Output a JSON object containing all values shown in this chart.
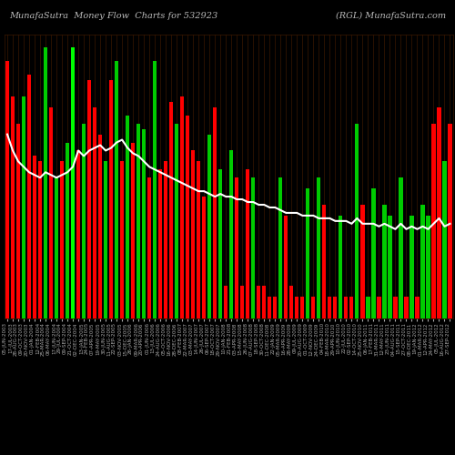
{
  "title_left": "MunafaSutra  Money Flow  Charts for 532923",
  "title_right": "(RGL) MunafaSutra.com",
  "background_color": "#000000",
  "bar_colors": [
    "red",
    "red",
    "red",
    "green",
    "red",
    "red",
    "red",
    "green",
    "red",
    "green",
    "red",
    "green",
    "green",
    "red",
    "green",
    "red",
    "red",
    "red",
    "green",
    "red",
    "green",
    "red",
    "green",
    "red",
    "green",
    "green",
    "red",
    "green",
    "red",
    "red",
    "red",
    "green",
    "red",
    "red",
    "red",
    "red",
    "red",
    "green",
    "red",
    "green",
    "red",
    "green",
    "red",
    "red",
    "red",
    "green",
    "red",
    "red",
    "red",
    "red",
    "green",
    "red",
    "red",
    "red",
    "red",
    "green",
    "red",
    "green",
    "red",
    "red",
    "red",
    "green",
    "red",
    "red",
    "green",
    "red",
    "green",
    "green",
    "red",
    "green",
    "green",
    "red",
    "green",
    "red",
    "green",
    "red",
    "green",
    "green",
    "red",
    "red",
    "green",
    "red"
  ],
  "bar_heights": [
    95,
    82,
    72,
    82,
    90,
    60,
    58,
    100,
    78,
    52,
    58,
    65,
    100,
    62,
    72,
    88,
    78,
    68,
    58,
    88,
    95,
    58,
    75,
    65,
    72,
    70,
    52,
    95,
    55,
    58,
    80,
    72,
    82,
    75,
    62,
    58,
    45,
    68,
    78,
    55,
    12,
    62,
    52,
    12,
    55,
    52,
    12,
    12,
    8,
    8,
    52,
    38,
    12,
    8,
    8,
    48,
    8,
    52,
    42,
    8,
    8,
    38,
    8,
    8,
    72,
    42,
    8,
    48,
    8,
    42,
    38,
    8,
    52,
    8,
    38,
    8,
    42,
    38,
    72,
    78,
    58,
    72
  ],
  "line_values": [
    68,
    62,
    58,
    56,
    54,
    53,
    52,
    54,
    53,
    52,
    53,
    54,
    56,
    62,
    60,
    62,
    63,
    64,
    62,
    63,
    65,
    66,
    63,
    61,
    60,
    58,
    56,
    55,
    54,
    53,
    52,
    51,
    50,
    49,
    48,
    47,
    47,
    46,
    45,
    46,
    45,
    45,
    44,
    44,
    43,
    43,
    42,
    42,
    41,
    41,
    40,
    39,
    39,
    39,
    38,
    38,
    38,
    37,
    37,
    37,
    36,
    36,
    36,
    35,
    37,
    35,
    35,
    35,
    34,
    35,
    34,
    33,
    35,
    33,
    34,
    33,
    34,
    33,
    35,
    37,
    34,
    35
  ],
  "vline_color": "#00ff00",
  "vline_index": 12,
  "grid_color": "#3a1800",
  "line_color": "#ffffff",
  "xlabel_color": "#aaaaaa",
  "title_color": "#bbbbbb",
  "title_fontsize": 7,
  "tick_fontsize": 4,
  "labels": [
    "05-JUN-2003",
    "17-JUL-2003",
    "28-AUG-2003",
    "09-OCT-2003",
    "20-NOV-2003",
    "01-JAN-2004",
    "12-FEB-2004",
    "25-MAR-2004",
    "06-MAY-2004",
    "17-JUN-2004",
    "29-JUL-2004",
    "09-SEP-2004",
    "21-OCT-2004",
    "02-DEC-2004",
    "13-JAN-2005",
    "24-FEB-2005",
    "07-APR-2005",
    "19-MAY-2005",
    "30-JUN-2005",
    "11-AUG-2005",
    "22-SEP-2005",
    "03-NOV-2005",
    "15-DEC-2005",
    "26-JAN-2006",
    "09-MAR-2006",
    "20-APR-2006",
    "01-JUN-2006",
    "13-JUL-2006",
    "24-AUG-2006",
    "05-OCT-2006",
    "16-NOV-2006",
    "28-DEC-2006",
    "08-FEB-2007",
    "22-MAR-2007",
    "03-MAY-2007",
    "14-JUN-2007",
    "26-JUL-2007",
    "06-SEP-2007",
    "18-OCT-2007",
    "29-NOV-2007",
    "10-JAN-2008",
    "21-FEB-2008",
    "03-APR-2008",
    "15-MAY-2008",
    "26-JUN-2008",
    "07-AUG-2008",
    "18-SEP-2008",
    "30-OCT-2008",
    "11-DEC-2008",
    "22-JAN-2009",
    "05-MAR-2009",
    "16-APR-2009",
    "28-MAY-2009",
    "09-JUL-2009",
    "20-AUG-2009",
    "01-OCT-2009",
    "12-NOV-2009",
    "24-DEC-2009",
    "04-FEB-2010",
    "18-MAR-2010",
    "29-APR-2010",
    "10-JUN-2010",
    "22-JUL-2010",
    "02-SEP-2010",
    "14-OCT-2010",
    "25-NOV-2010",
    "06-JAN-2011",
    "17-FEB-2011",
    "31-MAR-2011",
    "12-MAY-2011",
    "23-JUN-2011",
    "04-AUG-2011",
    "15-SEP-2011",
    "27-OCT-2011",
    "08-DEC-2011",
    "19-JAN-2012",
    "01-MAR-2012",
    "12-APR-2012",
    "24-MAY-2012",
    "05-JUL-2012",
    "16-AUG-2012",
    "27-SEP-2012"
  ]
}
